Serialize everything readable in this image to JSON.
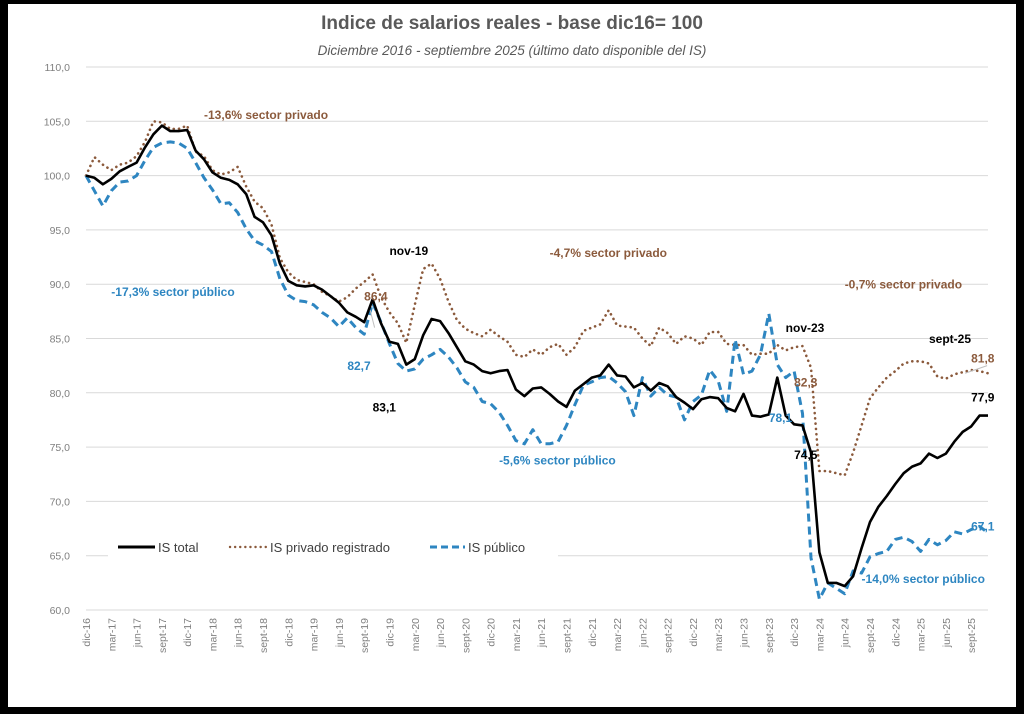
{
  "chart_data": {
    "type": "line",
    "title": "Indice de salarios reales -  base dic16= 100",
    "subtitle": "Diciembre 2016 - septiembre 2025 (último dato disponible del IS)",
    "xlabel": "",
    "ylabel": "",
    "ylim": [
      60,
      110
    ],
    "yticks": [
      "60,0",
      "65,0",
      "70,0",
      "75,0",
      "80,0",
      "85,0",
      "90,0",
      "95,0",
      "100,0",
      "105,0",
      "110,0"
    ],
    "ytick_values": [
      60,
      65,
      70,
      75,
      80,
      85,
      90,
      95,
      100,
      105,
      110
    ],
    "grid": "horizontal",
    "legend_position": "bottom-left-inside",
    "xtick_labels": [
      "dic-16",
      "mar-17",
      "jun-17",
      "sept-17",
      "dic-17",
      "mar-18",
      "jun-18",
      "sept-18",
      "dic-18",
      "mar-19",
      "jun-19",
      "sept-19",
      "dic-19",
      "mar-20",
      "jun-20",
      "sept-20",
      "dic-20",
      "mar-21",
      "jun-21",
      "sept-21",
      "dic-21",
      "mar-22",
      "jun-22",
      "sept-22",
      "dic-22",
      "mar-23",
      "jun-23",
      "sept-23",
      "dic-23",
      "mar-24",
      "jun-24",
      "sept-24",
      "dic-24",
      "mar-25",
      "jun-25",
      "sept-25"
    ],
    "x_start": "dic-16",
    "x_end": "sept-25",
    "x_step": "month",
    "series": [
      {
        "name": "IS total",
        "color": "#000000",
        "style": "solid",
        "values": [
          100.0,
          99.8,
          99.2,
          99.7,
          100.4,
          100.8,
          101.2,
          102.6,
          103.8,
          104.6,
          104.1,
          104.1,
          104.2,
          102.3,
          101.5,
          100.3,
          99.8,
          99.6,
          99.2,
          98.3,
          96.2,
          95.7,
          94.5,
          91.9,
          90.3,
          89.9,
          89.8,
          89.9,
          89.5,
          88.9,
          88.3,
          87.4,
          87.0,
          86.5,
          88.6,
          86.4,
          84.7,
          84.5,
          82.6,
          83.1,
          85.3,
          86.8,
          86.6,
          85.5,
          84.2,
          82.9,
          82.6,
          82.0,
          81.8,
          82.0,
          82.1,
          80.3,
          79.7,
          80.4,
          80.5,
          79.9,
          79.2,
          78.7,
          80.2,
          80.8,
          81.4,
          81.6,
          82.6,
          81.6,
          81.5,
          80.5,
          80.9,
          80.2,
          80.9,
          80.6,
          79.6,
          79.1,
          78.5,
          79.4,
          79.6,
          79.5,
          78.6,
          78.3,
          79.9,
          77.9,
          77.8,
          78.0,
          81.4,
          77.9,
          77.1,
          77.0,
          74.5,
          65.3,
          62.5,
          62.5,
          62.2,
          63.1,
          65.7,
          68.1,
          69.5,
          70.5,
          71.6,
          72.6,
          73.2,
          73.5,
          74.4,
          74.0,
          74.4,
          75.5,
          76.4,
          76.9,
          77.9,
          77.9
        ]
      },
      {
        "name": "IS privado registrado",
        "color": "#8B5A3C",
        "style": "dotted",
        "values": [
          100.0,
          101.7,
          101.0,
          100.5,
          101.0,
          101.2,
          101.8,
          103.1,
          105.0,
          104.9,
          104.3,
          104.3,
          104.6,
          102.2,
          101.8,
          100.5,
          100.1,
          100.3,
          100.8,
          99.0,
          97.6,
          97.0,
          95.5,
          92.4,
          91.1,
          90.4,
          90.2,
          90.0,
          89.3,
          88.9,
          88.4,
          88.8,
          89.6,
          90.2,
          90.9,
          88.8,
          87.4,
          86.4,
          84.6,
          88.1,
          91.4,
          91.9,
          90.5,
          88.4,
          86.7,
          85.9,
          85.5,
          85.2,
          85.8,
          85.2,
          84.7,
          83.5,
          83.3,
          84.0,
          83.5,
          84.2,
          84.5,
          83.5,
          84.2,
          85.7,
          86.0,
          86.3,
          87.6,
          86.2,
          86.1,
          86.0,
          85.0,
          84.3,
          86.0,
          85.5,
          84.5,
          85.2,
          85.0,
          84.4,
          85.6,
          85.6,
          84.5,
          84.4,
          84.4,
          83.5,
          83.6,
          83.6,
          84.4,
          83.9,
          84.2,
          84.3,
          82.3,
          72.8,
          72.8,
          72.6,
          72.4,
          74.5,
          77.0,
          79.5,
          80.5,
          81.4,
          82.0,
          82.7,
          82.9,
          82.9,
          82.7,
          81.5,
          81.3,
          81.7,
          81.9,
          82.1,
          82.0,
          81.8
        ]
      },
      {
        "name": "IS público",
        "color": "#2E86C1",
        "style": "dashed",
        "values": [
          100.0,
          98.6,
          97.2,
          98.6,
          99.4,
          99.5,
          100.0,
          101.4,
          102.6,
          103.0,
          103.1,
          103.0,
          102.5,
          101.2,
          99.8,
          98.7,
          97.4,
          97.5,
          96.6,
          95.1,
          94.0,
          93.6,
          93.0,
          90.5,
          89.0,
          88.5,
          88.4,
          88.1,
          87.4,
          86.9,
          86.1,
          86.9,
          86.0,
          85.4,
          88.3,
          86.5,
          84.5,
          82.7,
          82.0,
          82.2,
          83.1,
          83.5,
          84.0,
          83.3,
          82.3,
          81.0,
          80.5,
          79.2,
          79.0,
          78.2,
          77.0,
          75.6,
          75.3,
          76.6,
          75.3,
          75.3,
          75.5,
          77.0,
          78.9,
          80.7,
          81.0,
          81.4,
          81.5,
          80.9,
          80.1,
          77.9,
          81.4,
          79.7,
          80.5,
          79.8,
          79.6,
          77.5,
          79.2,
          79.8,
          82.1,
          81.1,
          78.3,
          84.9,
          81.7,
          82.0,
          83.5,
          87.3,
          82.6,
          81.4,
          82.0,
          78.1,
          64.8,
          61.0,
          62.5,
          62.0,
          61.5,
          63.6,
          63.4,
          64.9,
          65.2,
          65.4,
          66.5,
          66.7,
          66.3,
          65.4,
          66.5,
          66.0,
          66.4,
          67.2,
          67.0,
          67.4,
          67.7,
          67.1
        ]
      }
    ],
    "annotations": [
      {
        "text": "-13,6% sector privado",
        "color": "#8B5A3C",
        "month_index": 14,
        "y_value": 105.2
      },
      {
        "text": "-17,3% sector público",
        "color": "#2E86C1",
        "month_index": 3,
        "y_value": 88.9
      },
      {
        "text": "nov-19",
        "color": "#000000",
        "month_index": 36,
        "y_value": 92.7
      },
      {
        "text": "86,4",
        "color": "#8B5A3C",
        "month_index": 33,
        "y_value": 88.5
      },
      {
        "text": "82,7",
        "color": "#2E86C1",
        "month_index": 31,
        "y_value": 82.1
      },
      {
        "text": "83,1",
        "color": "#000000",
        "month_index": 34,
        "y_value": 78.3
      },
      {
        "text": "-4,7% sector privado",
        "color": "#8B5A3C",
        "month_index": 55,
        "y_value": 92.5
      },
      {
        "text": "-5,6% sector público",
        "color": "#2E86C1",
        "month_index": 49,
        "y_value": 73.4
      },
      {
        "text": "nov-23",
        "color": "#000000",
        "month_index": 83,
        "y_value": 85.6
      },
      {
        "text": "82,3",
        "color": "#8B5A3C",
        "month_index": 84,
        "y_value": 80.6
      },
      {
        "text": "78,1",
        "color": "#2E86C1",
        "month_index": 81,
        "y_value": 77.3
      },
      {
        "text": "74,5",
        "color": "#000000",
        "month_index": 84,
        "y_value": 73.9
      },
      {
        "text": "-0,7% sector privado",
        "color": "#8B5A3C",
        "month_index": 90,
        "y_value": 89.6
      },
      {
        "text": "sept-25",
        "color": "#000000",
        "month_index": 100,
        "y_value": 84.6
      },
      {
        "text": "81,8",
        "color": "#8B5A3C",
        "month_index": 105,
        "y_value": 82.8
      },
      {
        "text": "77,9",
        "color": "#000000",
        "month_index": 105,
        "y_value": 79.2
      },
      {
        "text": "67,1",
        "color": "#2E86C1",
        "month_index": 105,
        "y_value": 67.3
      },
      {
        "text": "-14,0% sector público",
        "color": "#2E86C1",
        "month_index": 92,
        "y_value": 62.5
      }
    ]
  }
}
